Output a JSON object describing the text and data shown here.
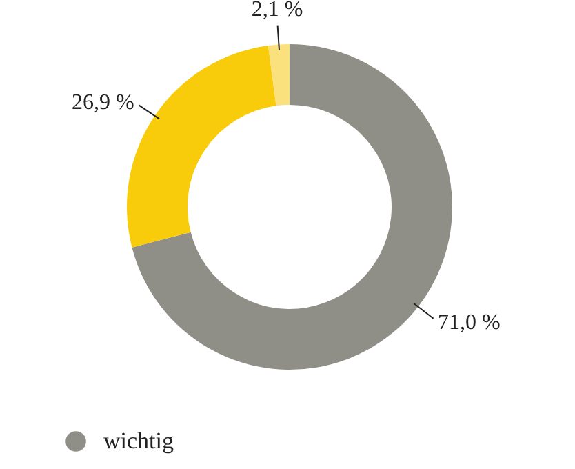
{
  "chart_data": {
    "type": "donut",
    "categories": [
      "wichtig",
      null,
      null
    ],
    "values": [
      71.0,
      26.9,
      2.1
    ],
    "colors": [
      "#8f8e87",
      "#f9cc0b",
      "#fbe07e"
    ],
    "value_labels": [
      "71,0 %",
      "26,9 %",
      "2,1 %"
    ],
    "legend": "bottom left"
  }
}
